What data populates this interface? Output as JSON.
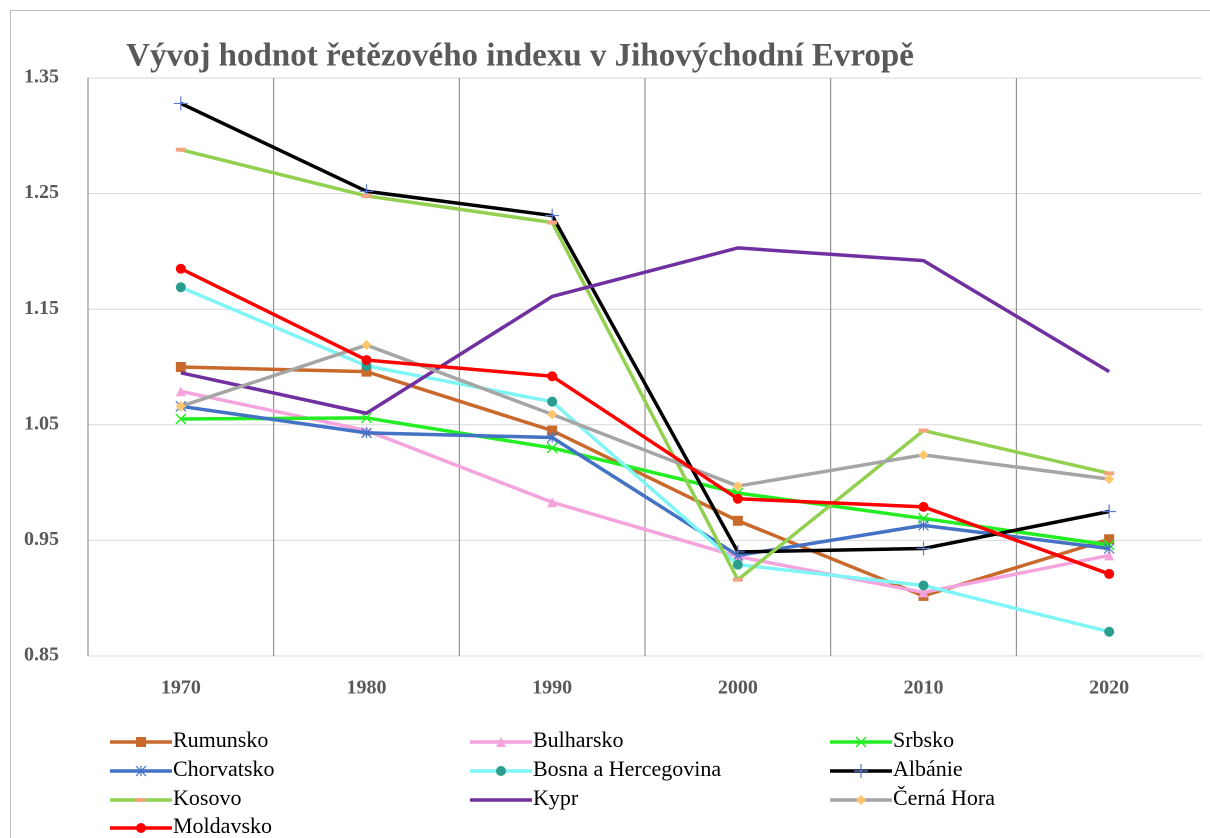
{
  "chart_data": {
    "type": "line",
    "title": "Vývoj hodnot řetězového indexu v Jihovýchodní Evropě",
    "categories": [
      "1970",
      "1980",
      "1990",
      "2000",
      "2010",
      "2020"
    ],
    "ylim": [
      0.85,
      1.35
    ],
    "yticks": [
      0.85,
      0.95,
      1.05,
      1.15,
      1.25,
      1.35
    ],
    "grid": true,
    "legend": "bottom",
    "series": [
      {
        "name": "Rumunsko",
        "color": "#c9692c",
        "marker": "square",
        "values": [
          1.1,
          1.096,
          1.045,
          0.967,
          0.902,
          0.951
        ]
      },
      {
        "name": "Bulharsko",
        "color": "#f4a3dc",
        "marker": "triangle",
        "values": [
          1.079,
          1.045,
          0.983,
          0.936,
          0.905,
          0.937
        ]
      },
      {
        "name": "Srbsko",
        "color": "#22ee22",
        "marker": "x",
        "values": [
          1.055,
          1.056,
          1.03,
          0.991,
          0.969,
          0.946
        ]
      },
      {
        "name": "Chorvatsko",
        "color": "#4472c4",
        "marker": "asterisk",
        "values": [
          1.066,
          1.043,
          1.039,
          0.937,
          0.963,
          0.943
        ]
      },
      {
        "name": "Bosna a Hercegovina",
        "color": "#7ff5f5",
        "marker": "circle",
        "markerColor": "#2a9d8f",
        "values": [
          1.169,
          1.101,
          1.07,
          0.929,
          0.911,
          0.871
        ]
      },
      {
        "name": "Albánie",
        "color": "#000000",
        "marker": "plus",
        "markerColor": "#5b7bd5",
        "values": [
          1.328,
          1.252,
          1.231,
          0.94,
          0.943,
          0.975
        ]
      },
      {
        "name": "Kosovo",
        "color": "#92d050",
        "marker": "dash",
        "markerColor": "#f4a582",
        "values": [
          1.288,
          1.248,
          1.225,
          0.916,
          1.045,
          1.008
        ]
      },
      {
        "name": "Kypr",
        "color": "#7030a0",
        "marker": "none",
        "values": [
          1.095,
          1.06,
          1.161,
          1.203,
          1.192,
          1.096
        ]
      },
      {
        "name": "Černá Hora",
        "color": "#a5a5a5",
        "marker": "diamond",
        "markerColor": "#ffc56b",
        "values": [
          1.066,
          1.119,
          1.059,
          0.997,
          1.024,
          1.003
        ]
      },
      {
        "name": "Moldavsko",
        "color": "#ff0000",
        "marker": "circle",
        "values": [
          1.185,
          1.106,
          1.092,
          0.986,
          0.979,
          0.921
        ]
      }
    ]
  }
}
